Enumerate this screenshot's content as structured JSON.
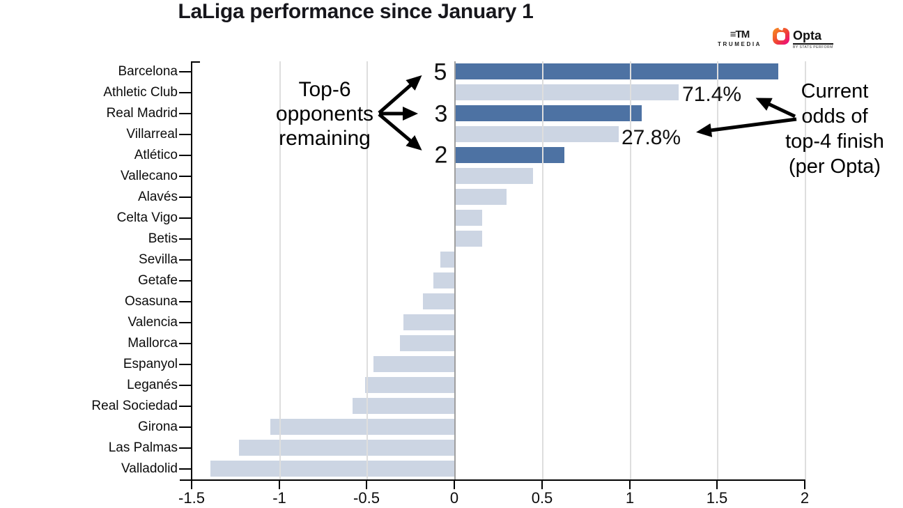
{
  "title": "LaLiga performance since January 1",
  "branding": {
    "trumedia_icon": "≡TM",
    "trumedia": "TRUMEDIA",
    "opta": "Opta",
    "opta_sub": "BY STATS PERFORM"
  },
  "annotations": {
    "top6": {
      "lines": [
        "Top-6",
        "opponents",
        "remaining"
      ],
      "values": [
        "5",
        "3",
        "2"
      ],
      "applies_to": [
        "Barcelona",
        "Real Madrid",
        "Atlético"
      ]
    },
    "odds": {
      "lines": [
        "Current",
        "odds of",
        "top-4 finish",
        "(per Opta)"
      ],
      "labels": [
        "71.4%",
        "27.8%"
      ],
      "applies_to": [
        "Athletic Club",
        "Villarreal"
      ]
    }
  },
  "chart_data": {
    "type": "bar",
    "orientation": "horizontal",
    "title": "LaLiga performance since January 1",
    "xlabel": "",
    "ylabel": "",
    "xlim": [
      -1.5,
      2
    ],
    "xticks": [
      "-1.5",
      "-1",
      "-0.5",
      "0",
      "0.5",
      "1",
      "1.5",
      "2"
    ],
    "grid": "vertical",
    "legend": "none",
    "bar_color_default": "#ccd5e3",
    "bar_color_highlight": "#4d72a3",
    "categories": [
      "Barcelona",
      "Athletic Club",
      "Real Madrid",
      "Villarreal",
      "Atlético",
      "Vallecano",
      "Alavés",
      "Celta Vigo",
      "Betis",
      "Sevilla",
      "Getafe",
      "Osasuna",
      "Valencia",
      "Mallorca",
      "Espanyol",
      "Leganés",
      "Real Sociedad",
      "Girona",
      "Las Palmas",
      "Valladolid"
    ],
    "values": [
      1.85,
      1.28,
      1.07,
      0.94,
      0.63,
      0.45,
      0.3,
      0.16,
      0.16,
      -0.08,
      -0.12,
      -0.18,
      -0.29,
      -0.31,
      -0.46,
      -0.51,
      -0.58,
      -1.05,
      -1.23,
      -1.39
    ],
    "teams": [
      {
        "name": "Barcelona",
        "value": 1.85,
        "highlight": true,
        "top6_remaining": "5"
      },
      {
        "name": "Athletic Club",
        "value": 1.28,
        "highlight": false,
        "top4_odds": "71.4%"
      },
      {
        "name": "Real Madrid",
        "value": 1.07,
        "highlight": true,
        "top6_remaining": "3"
      },
      {
        "name": "Villarreal",
        "value": 0.94,
        "highlight": false,
        "top4_odds": "27.8%"
      },
      {
        "name": "Atlético",
        "value": 0.63,
        "highlight": true,
        "top6_remaining": "2"
      },
      {
        "name": "Vallecano",
        "value": 0.45,
        "highlight": false
      },
      {
        "name": "Alavés",
        "value": 0.3,
        "highlight": false
      },
      {
        "name": "Celta Vigo",
        "value": 0.16,
        "highlight": false
      },
      {
        "name": "Betis",
        "value": 0.16,
        "highlight": false
      },
      {
        "name": "Sevilla",
        "value": -0.08,
        "highlight": false
      },
      {
        "name": "Getafe",
        "value": -0.12,
        "highlight": false
      },
      {
        "name": "Osasuna",
        "value": -0.18,
        "highlight": false
      },
      {
        "name": "Valencia",
        "value": -0.29,
        "highlight": false
      },
      {
        "name": "Mallorca",
        "value": -0.31,
        "highlight": false
      },
      {
        "name": "Espanyol",
        "value": -0.46,
        "highlight": false
      },
      {
        "name": "Leganés",
        "value": -0.51,
        "highlight": false
      },
      {
        "name": "Real Sociedad",
        "value": -0.58,
        "highlight": false
      },
      {
        "name": "Girona",
        "value": -1.05,
        "highlight": false
      },
      {
        "name": "Las Palmas",
        "value": -1.23,
        "highlight": false
      },
      {
        "name": "Valladolid",
        "value": -1.39,
        "highlight": false
      }
    ]
  }
}
